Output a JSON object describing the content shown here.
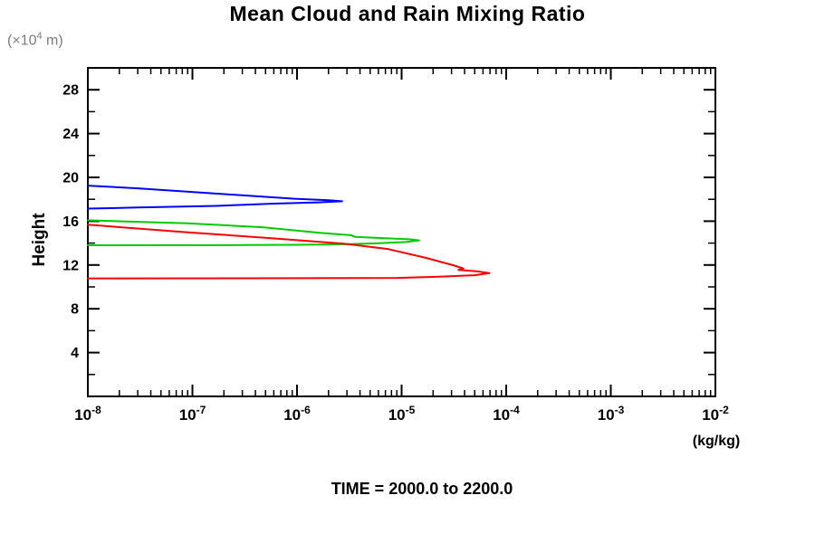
{
  "title": "Mean Cloud and Rain Mixing Ratio",
  "y_axis": {
    "label": "Height",
    "unit_prefix": "(×10",
    "unit_exponent": "4",
    "unit_suffix": " m)",
    "tick_labels": [
      4,
      8,
      12,
      16,
      20,
      24,
      28
    ],
    "minor_step": 2
  },
  "x_axis": {
    "base": "10",
    "tick_exponents": [
      -8,
      -7,
      -6,
      -5,
      -4,
      -3,
      -2
    ],
    "unit_label": "(kg/kg)"
  },
  "footer": {
    "time_label": "TIME = 2000.0 to 2200.0"
  },
  "chart_data": {
    "type": "line",
    "title": "Mean Cloud and Rain Mixing Ratio",
    "xlabel": "(kg/kg)",
    "ylabel": "Height (x10^4 m)",
    "x_scale": "log",
    "xlog_range": [
      -8,
      -2
    ],
    "ylim": [
      0,
      30
    ],
    "grid": false,
    "legend": "none",
    "frame_color": "#000000",
    "series": [
      {
        "name": "blue",
        "color": "#0000ff",
        "points": [
          [
            1e-08,
            19.25
          ],
          [
            3e-08,
            19.0
          ],
          [
            1.8e-07,
            18.5
          ],
          [
            9.5e-07,
            18.05
          ],
          [
            2e-06,
            17.92
          ],
          [
            2.7e-06,
            17.82
          ],
          [
            1.6e-06,
            17.72
          ],
          [
            6e-07,
            17.6
          ],
          [
            1.7e-07,
            17.4
          ],
          [
            3e-08,
            17.25
          ],
          [
            1e-08,
            17.15
          ]
        ]
      },
      {
        "name": "green",
        "color": "#00cc00",
        "points": [
          [
            1e-08,
            16.08
          ],
          [
            9e-08,
            15.8
          ],
          [
            4.7e-07,
            15.45
          ],
          [
            1.6e-06,
            14.95
          ],
          [
            3.3e-06,
            14.72
          ],
          [
            3.6e-06,
            14.56
          ],
          [
            7e-06,
            14.45
          ],
          [
            1.2e-05,
            14.35
          ],
          [
            1.47e-05,
            14.25
          ],
          [
            1.1e-05,
            14.1
          ],
          [
            6e-06,
            13.99
          ],
          [
            3e-06,
            13.89
          ],
          [
            1e-06,
            13.84
          ],
          [
            3e-07,
            13.82
          ],
          [
            1e-08,
            13.8
          ]
        ]
      },
      {
        "name": "red",
        "color": "#ff0000",
        "points": [
          [
            1e-08,
            15.68
          ],
          [
            8.5e-08,
            15.0
          ],
          [
            5.7e-07,
            14.45
          ],
          [
            2.8e-06,
            13.95
          ],
          [
            7.5e-06,
            13.45
          ],
          [
            1.7e-05,
            12.65
          ],
          [
            3.1e-05,
            11.98
          ],
          [
            3.9e-05,
            11.68
          ],
          [
            3.5e-05,
            11.55
          ],
          [
            5.2e-05,
            11.42
          ],
          [
            6.9e-05,
            11.26
          ],
          [
            5e-05,
            11.07
          ],
          [
            2.1e-05,
            10.92
          ],
          [
            9e-06,
            10.82
          ],
          [
            1e-06,
            10.79
          ],
          [
            1e-08,
            10.78
          ]
        ]
      }
    ]
  }
}
